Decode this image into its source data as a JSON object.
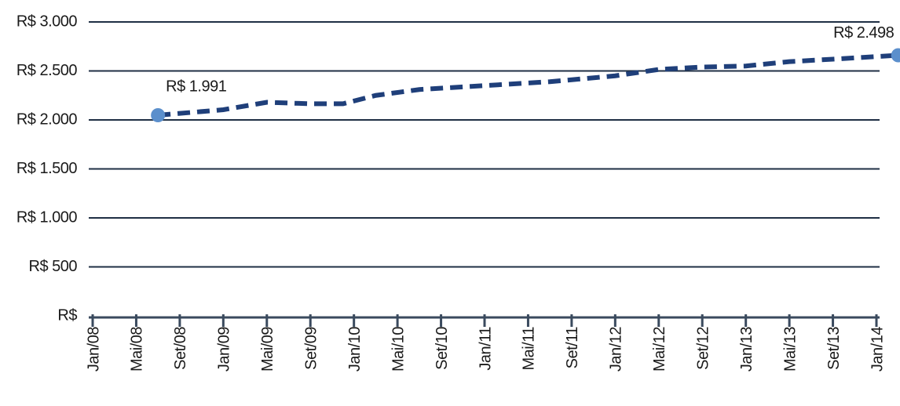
{
  "chart_data": {
    "type": "line",
    "xlim": [
      0,
      72
    ],
    "xticks": [
      {
        "value": 0,
        "label": "Jan/08"
      },
      {
        "value": 4,
        "label": "Mai/08"
      },
      {
        "value": 8,
        "label": "Set/08"
      },
      {
        "value": 12,
        "label": "Jan/09"
      },
      {
        "value": 16,
        "label": "Mai/09"
      },
      {
        "value": 20,
        "label": "Set/09"
      },
      {
        "value": 24,
        "label": "Jan/10"
      },
      {
        "value": 28,
        "label": "Mai/10"
      },
      {
        "value": 32,
        "label": "Set/10"
      },
      {
        "value": 36,
        "label": "Jan/11"
      },
      {
        "value": 40,
        "label": "Mai/11"
      },
      {
        "value": 44,
        "label": "Set/11"
      },
      {
        "value": 48,
        "label": "Jan/12"
      },
      {
        "value": 52,
        "label": "Mai/12"
      },
      {
        "value": 56,
        "label": "Set/12"
      },
      {
        "value": 60,
        "label": "Jan/13"
      },
      {
        "value": 64,
        "label": "Mai/13"
      },
      {
        "value": 68,
        "label": "Set/13"
      },
      {
        "value": 72,
        "label": "Jan/14"
      }
    ],
    "ylim": [
      0,
      3000
    ],
    "yticks": [
      {
        "value": 0,
        "label": "R$"
      },
      {
        "value": 500,
        "label": "R$ 500"
      },
      {
        "value": 1000,
        "label": "R$ 1.000"
      },
      {
        "value": 1500,
        "label": "R$ 1.500"
      },
      {
        "value": 2000,
        "label": "R$ 2.000"
      },
      {
        "value": 2500,
        "label": "R$ 2.500"
      },
      {
        "value": 3000,
        "label": "R$ 3.000"
      }
    ],
    "grid": true,
    "series": [
      {
        "color": "#1f3f7a",
        "marker_color": "#5b8fcc",
        "x": [
          6,
          12,
          16,
          20,
          23,
          26,
          30,
          36,
          42,
          48,
          52,
          56,
          60,
          64,
          68,
          74
        ],
        "values": [
          2048,
          2104,
          2180,
          2165,
          2165,
          2250,
          2310,
          2350,
          2390,
          2450,
          2515,
          2540,
          2550,
          2595,
          2620,
          2660
        ]
      }
    ],
    "annotations": [
      "R$ 1.991",
      "R$ 2.498"
    ]
  }
}
